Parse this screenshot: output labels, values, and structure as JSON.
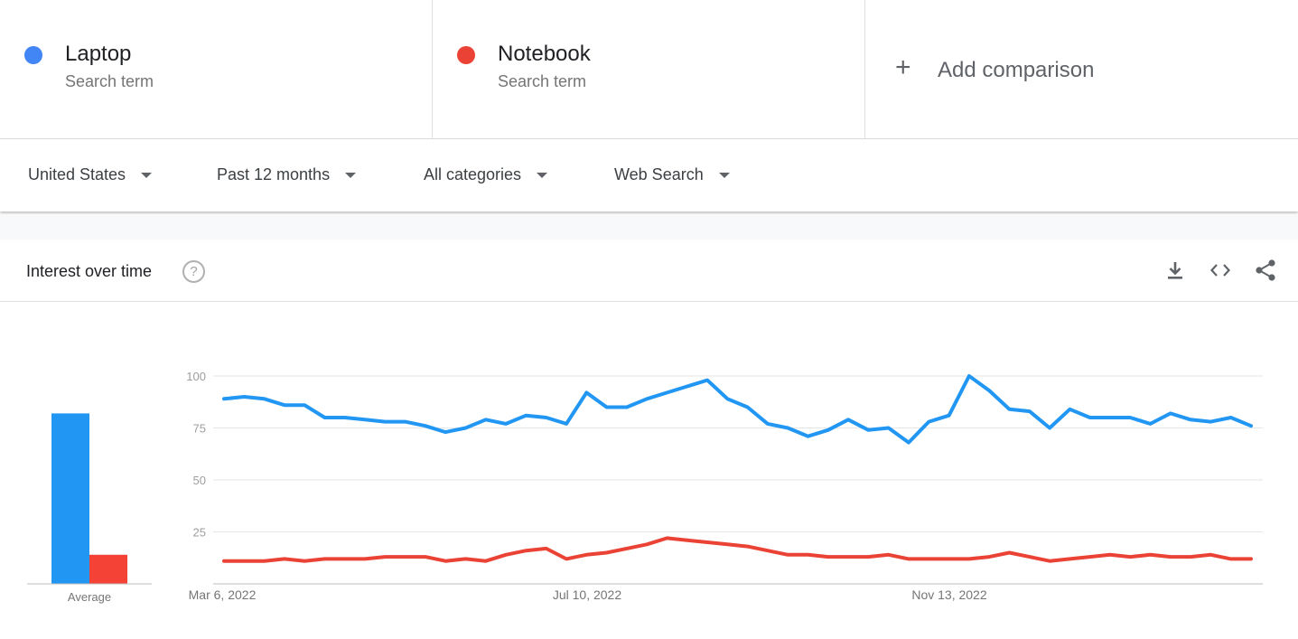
{
  "compare": {
    "terms": [
      {
        "name": "Laptop",
        "sub": "Search term",
        "color": "#4285f4"
      },
      {
        "name": "Notebook",
        "sub": "Search term",
        "color": "#ea4335"
      }
    ],
    "add_label": "Add comparison",
    "add_icon": "plus-icon"
  },
  "filters": {
    "region": "United States",
    "time": "Past 12 months",
    "category": "All categories",
    "property": "Web Search"
  },
  "card": {
    "title": "Interest over time",
    "help_icon": "help-circle-icon",
    "actions": [
      "download-icon",
      "embed-code-icon",
      "share-icon"
    ]
  },
  "chart_data": {
    "type": "line",
    "ylim": [
      0,
      100
    ],
    "yticks": [
      25,
      50,
      75,
      100
    ],
    "x_tick_labels": [
      "Mar 6, 2022",
      "Jul 10, 2022",
      "Nov 13, 2022"
    ],
    "grid": true,
    "series": [
      {
        "name": "Laptop",
        "color": "#2196f3",
        "values": [
          89,
          90,
          89,
          86,
          86,
          80,
          80,
          79,
          78,
          78,
          76,
          73,
          75,
          79,
          77,
          81,
          80,
          77,
          92,
          85,
          85,
          89,
          92,
          95,
          98,
          89,
          85,
          77,
          75,
          71,
          74,
          79,
          74,
          75,
          68,
          78,
          81,
          100,
          93,
          84,
          83,
          75,
          84,
          80,
          80,
          80,
          77,
          82,
          79,
          78,
          80,
          76
        ]
      },
      {
        "name": "Notebook",
        "color": "#ea4335",
        "values": [
          11,
          11,
          11,
          12,
          11,
          12,
          12,
          12,
          13,
          13,
          13,
          11,
          12,
          11,
          14,
          16,
          17,
          12,
          14,
          15,
          17,
          19,
          22,
          21,
          20,
          19,
          18,
          16,
          14,
          14,
          13,
          13,
          13,
          14,
          12,
          12,
          12,
          12,
          13,
          15,
          13,
          11,
          12,
          13,
          14,
          13,
          14,
          13,
          13,
          14,
          12,
          12
        ]
      }
    ],
    "average": {
      "label": "Average",
      "values": [
        82,
        14
      ]
    }
  }
}
